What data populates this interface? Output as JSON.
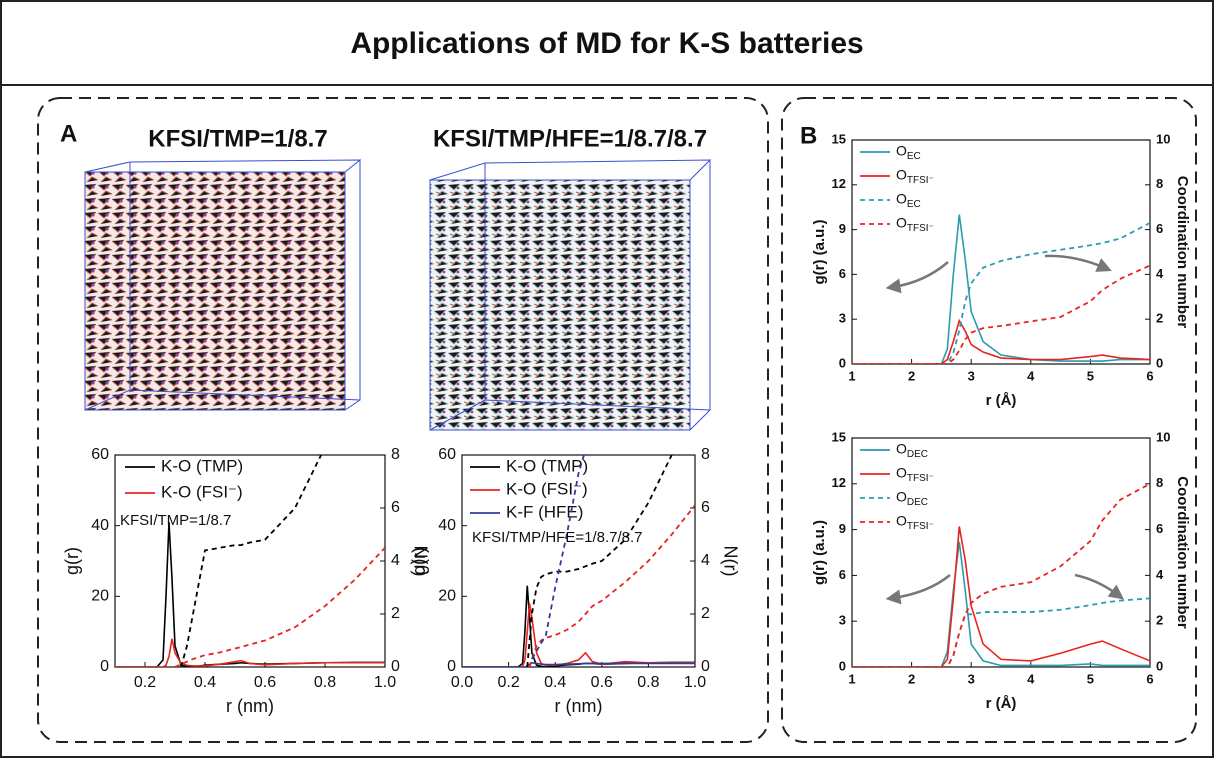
{
  "title": "Applications of MD for K-S batteries",
  "panels": [
    "A",
    "B"
  ],
  "structures": [
    "KFSI/TMP=1/8.7",
    "KFSI/TMP/HFE=1/8.7/8.7"
  ],
  "chart_data": [
    {
      "type": "line",
      "xlabel": "r (nm)",
      "ylabel": "g(r)",
      "y2label": "N(r)",
      "annotation": "KFSI/TMP=1/8.7",
      "xlim": [
        0.1,
        1.0
      ],
      "xticks": [
        0.2,
        0.4,
        0.6,
        0.8,
        {
          "value": 1.0,
          "label": "1.0"
        }
      ],
      "ylim": [
        0,
        60
      ],
      "yticks": [
        0,
        20,
        40,
        60
      ],
      "y2lim": [
        0,
        8
      ],
      "y2ticks": [
        0,
        2,
        4,
        6,
        8
      ],
      "x": [
        0.1,
        0.2,
        0.24,
        0.26,
        0.27,
        0.28,
        0.29,
        0.3,
        0.32,
        0.34,
        0.36,
        0.4,
        0.45,
        0.5,
        0.52,
        0.55,
        0.6,
        0.7,
        0.8,
        0.9,
        1.0
      ],
      "series": [
        {
          "name": "K-O (TMP)",
          "color": "#000000",
          "values": [
            0,
            0,
            0,
            2,
            20,
            41,
            25,
            6,
            0.5,
            0.2,
            0,
            0.5,
            0.8,
            1,
            1.2,
            1,
            0.8,
            1,
            1.2,
            1.3,
            1.3
          ]
        },
        {
          "name": "K-O (FSI⁻)",
          "color": "#e8241f",
          "values": [
            0,
            0,
            0,
            0,
            0.5,
            3,
            8,
            4,
            1,
            0.5,
            0.3,
            0.3,
            0.8,
            1.5,
            1.8,
            1,
            0.6,
            1,
            1.2,
            1.2,
            1.2
          ]
        },
        {
          "color": "#000000",
          "dash": true,
          "axis": "y2",
          "values": [
            null,
            null,
            null,
            null,
            null,
            null,
            null,
            null,
            0,
            0.8,
            2,
            4.4,
            4.5,
            4.6,
            4.6,
            4.7,
            4.8,
            6,
            8.3,
            null,
            null
          ]
        },
        {
          "color": "#e8241f",
          "dash": true,
          "axis": "y2",
          "values": [
            null,
            null,
            null,
            null,
            null,
            null,
            null,
            0,
            0.1,
            0.2,
            0.3,
            0.45,
            0.55,
            0.7,
            0.75,
            0.85,
            1.0,
            1.5,
            2.3,
            3.3,
            4.5
          ]
        }
      ]
    },
    {
      "type": "line",
      "xlabel": "r (nm)",
      "ylabel": "g(r)",
      "y2label": "N(r)",
      "annotation": "KFSI/TMP/HFE=1/8.7/8.7",
      "xlim": [
        0,
        1.0
      ],
      "xticks": [
        {
          "value": 0,
          "label": "0.0"
        },
        0.2,
        0.4,
        0.6,
        0.8,
        {
          "value": 1.0,
          "label": "1.0"
        }
      ],
      "ylim": [
        0,
        60
      ],
      "yticks": [
        0,
        20,
        40,
        60
      ],
      "y2lim": [
        0,
        8
      ],
      "y2ticks": [
        0,
        2,
        4,
        6,
        8
      ],
      "x": [
        0,
        0.2,
        0.24,
        0.26,
        0.27,
        0.28,
        0.29,
        0.3,
        0.32,
        0.34,
        0.36,
        0.4,
        0.45,
        0.5,
        0.53,
        0.56,
        0.6,
        0.7,
        0.8,
        0.9,
        1.0
      ],
      "series": [
        {
          "name": "K-O (TMP)",
          "color": "#000000",
          "values": [
            0,
            0,
            0,
            1,
            10,
            23,
            14,
            4,
            0.5,
            0.2,
            0,
            0.3,
            0.6,
            0.8,
            1,
            1,
            0.8,
            1,
            1.2,
            1.3,
            1.3
          ]
        },
        {
          "name": "K-O (FSI⁻)",
          "color": "#e8241f",
          "values": [
            0,
            0,
            0,
            0,
            2,
            10,
            18,
            14,
            4,
            1,
            0.5,
            0.5,
            1,
            2,
            4,
            1.5,
            0.8,
            1.5,
            1.2,
            1.2,
            1.2
          ]
        },
        {
          "name": "K-F (HFE)",
          "color": "#2e3b9b",
          "values": [
            0,
            0,
            0,
            0,
            0,
            0.3,
            0.8,
            1.2,
            1,
            0.8,
            0.7,
            0.7,
            0.8,
            0.9,
            1,
            1,
            1,
            1,
            1,
            1,
            1
          ]
        },
        {
          "color": "#000000",
          "dash": true,
          "axis": "y2",
          "values": [
            null,
            null,
            null,
            null,
            null,
            0,
            1,
            2,
            3,
            3.4,
            3.5,
            3.6,
            3.6,
            3.7,
            3.8,
            3.9,
            4.0,
            4.8,
            6.2,
            8.0,
            null
          ]
        },
        {
          "color": "#e8241f",
          "dash": true,
          "axis": "y2",
          "values": [
            null,
            null,
            null,
            null,
            null,
            null,
            0,
            0.3,
            0.8,
            1.0,
            1.1,
            1.2,
            1.4,
            1.7,
            2.0,
            2.3,
            2.5,
            3.2,
            4.0,
            5.0,
            6.1
          ]
        },
        {
          "color": "#2e3b9b",
          "dash": true,
          "axis": "y2",
          "values": [
            null,
            null,
            null,
            null,
            null,
            null,
            null,
            0.3,
            0.6,
            0.9,
            1.2,
            3,
            5,
            7.3,
            8.2,
            null,
            null,
            null,
            null,
            null,
            null
          ]
        }
      ]
    },
    {
      "type": "line",
      "xlabel": "r (Å)",
      "ylabel": "g(r) (a.u.)",
      "y2label": "Coordination number",
      "xlim": [
        1,
        6
      ],
      "xticks": [
        1,
        2,
        3,
        4,
        5,
        6
      ],
      "ylim": [
        0,
        15
      ],
      "yticks": [
        0,
        3,
        6,
        9,
        12,
        15
      ],
      "y2lim": [
        0,
        10
      ],
      "y2ticks": [
        0,
        2,
        4,
        6,
        8,
        10
      ],
      "x": [
        1,
        2,
        2.5,
        2.6,
        2.7,
        2.8,
        2.9,
        3.0,
        3.2,
        3.5,
        4,
        4.5,
        5,
        5.2,
        5.5,
        6
      ],
      "series": [
        {
          "name": "O",
          "sub": "EC",
          "color": "#2a9bb0",
          "values": [
            0,
            0,
            0,
            1,
            6,
            10,
            7,
            3.5,
            1.5,
            0.6,
            0.3,
            0.2,
            0.2,
            0.2,
            0.3,
            0.3
          ]
        },
        {
          "name": "O",
          "sub": "TFSI⁻",
          "color": "#e8241f",
          "values": [
            0,
            0,
            0,
            0.3,
            1.5,
            2.9,
            2.2,
            1.3,
            0.8,
            0.4,
            0.3,
            0.3,
            0.5,
            0.6,
            0.4,
            0.3
          ]
        },
        {
          "name": "O",
          "sub": "EC",
          "color": "#2a9bb0",
          "dash": true,
          "axis": "y2",
          "values": [
            0,
            0,
            0,
            0,
            0.5,
            1.5,
            2.8,
            3.6,
            4.3,
            4.6,
            4.9,
            5.1,
            5.3,
            5.4,
            5.6,
            6.3
          ]
        },
        {
          "name": "O",
          "sub": "TFSI⁻",
          "color": "#e8241f",
          "dash": true,
          "axis": "y2",
          "values": [
            0,
            0,
            0,
            0,
            0.2,
            0.6,
            1.1,
            1.4,
            1.6,
            1.7,
            1.9,
            2.1,
            2.8,
            3.3,
            3.8,
            4.4
          ]
        }
      ]
    },
    {
      "type": "line",
      "xlabel": "r (Å)",
      "ylabel": "g(r) (a.u.)",
      "y2label": "Coordination number",
      "xlim": [
        1,
        6
      ],
      "xticks": [
        1,
        2,
        3,
        4,
        5,
        6
      ],
      "ylim": [
        0,
        15
      ],
      "yticks": [
        0,
        3,
        6,
        9,
        12,
        15
      ],
      "y2lim": [
        0,
        10
      ],
      "y2ticks": [
        0,
        2,
        4,
        6,
        8,
        10
      ],
      "x": [
        1,
        2,
        2.5,
        2.6,
        2.7,
        2.8,
        2.9,
        3.0,
        3.2,
        3.5,
        4,
        4.5,
        5,
        5.2,
        5.5,
        6
      ],
      "series": [
        {
          "name": "O",
          "sub": "DEC",
          "color": "#2a9bb0",
          "values": [
            0,
            0,
            0,
            1,
            5,
            8.2,
            5,
            1.5,
            0.4,
            0.1,
            0.1,
            0.1,
            0.2,
            0.1,
            0.1,
            0.1
          ]
        },
        {
          "name": "O",
          "sub": "TFSI⁻",
          "color": "#e8241f",
          "values": [
            0,
            0,
            0,
            0.5,
            4.5,
            9.2,
            7,
            4,
            1.5,
            0.5,
            0.4,
            0.9,
            1.5,
            1.7,
            1.2,
            0.4
          ]
        },
        {
          "name": "O",
          "sub": "DEC",
          "color": "#2a9bb0",
          "dash": true,
          "axis": "y2",
          "values": [
            0,
            0,
            0,
            0,
            0.5,
            1.5,
            2.3,
            2.3,
            2.4,
            2.4,
            2.4,
            2.5,
            2.7,
            2.8,
            2.9,
            3.0
          ]
        },
        {
          "name": "O",
          "sub": "TFSI⁻",
          "color": "#e8241f",
          "dash": true,
          "axis": "y2",
          "values": [
            0,
            0,
            0,
            0,
            0.5,
            1.5,
            2.3,
            2.8,
            3.2,
            3.5,
            3.7,
            4.4,
            5.5,
            6.4,
            7.3,
            8.0
          ]
        }
      ]
    }
  ]
}
